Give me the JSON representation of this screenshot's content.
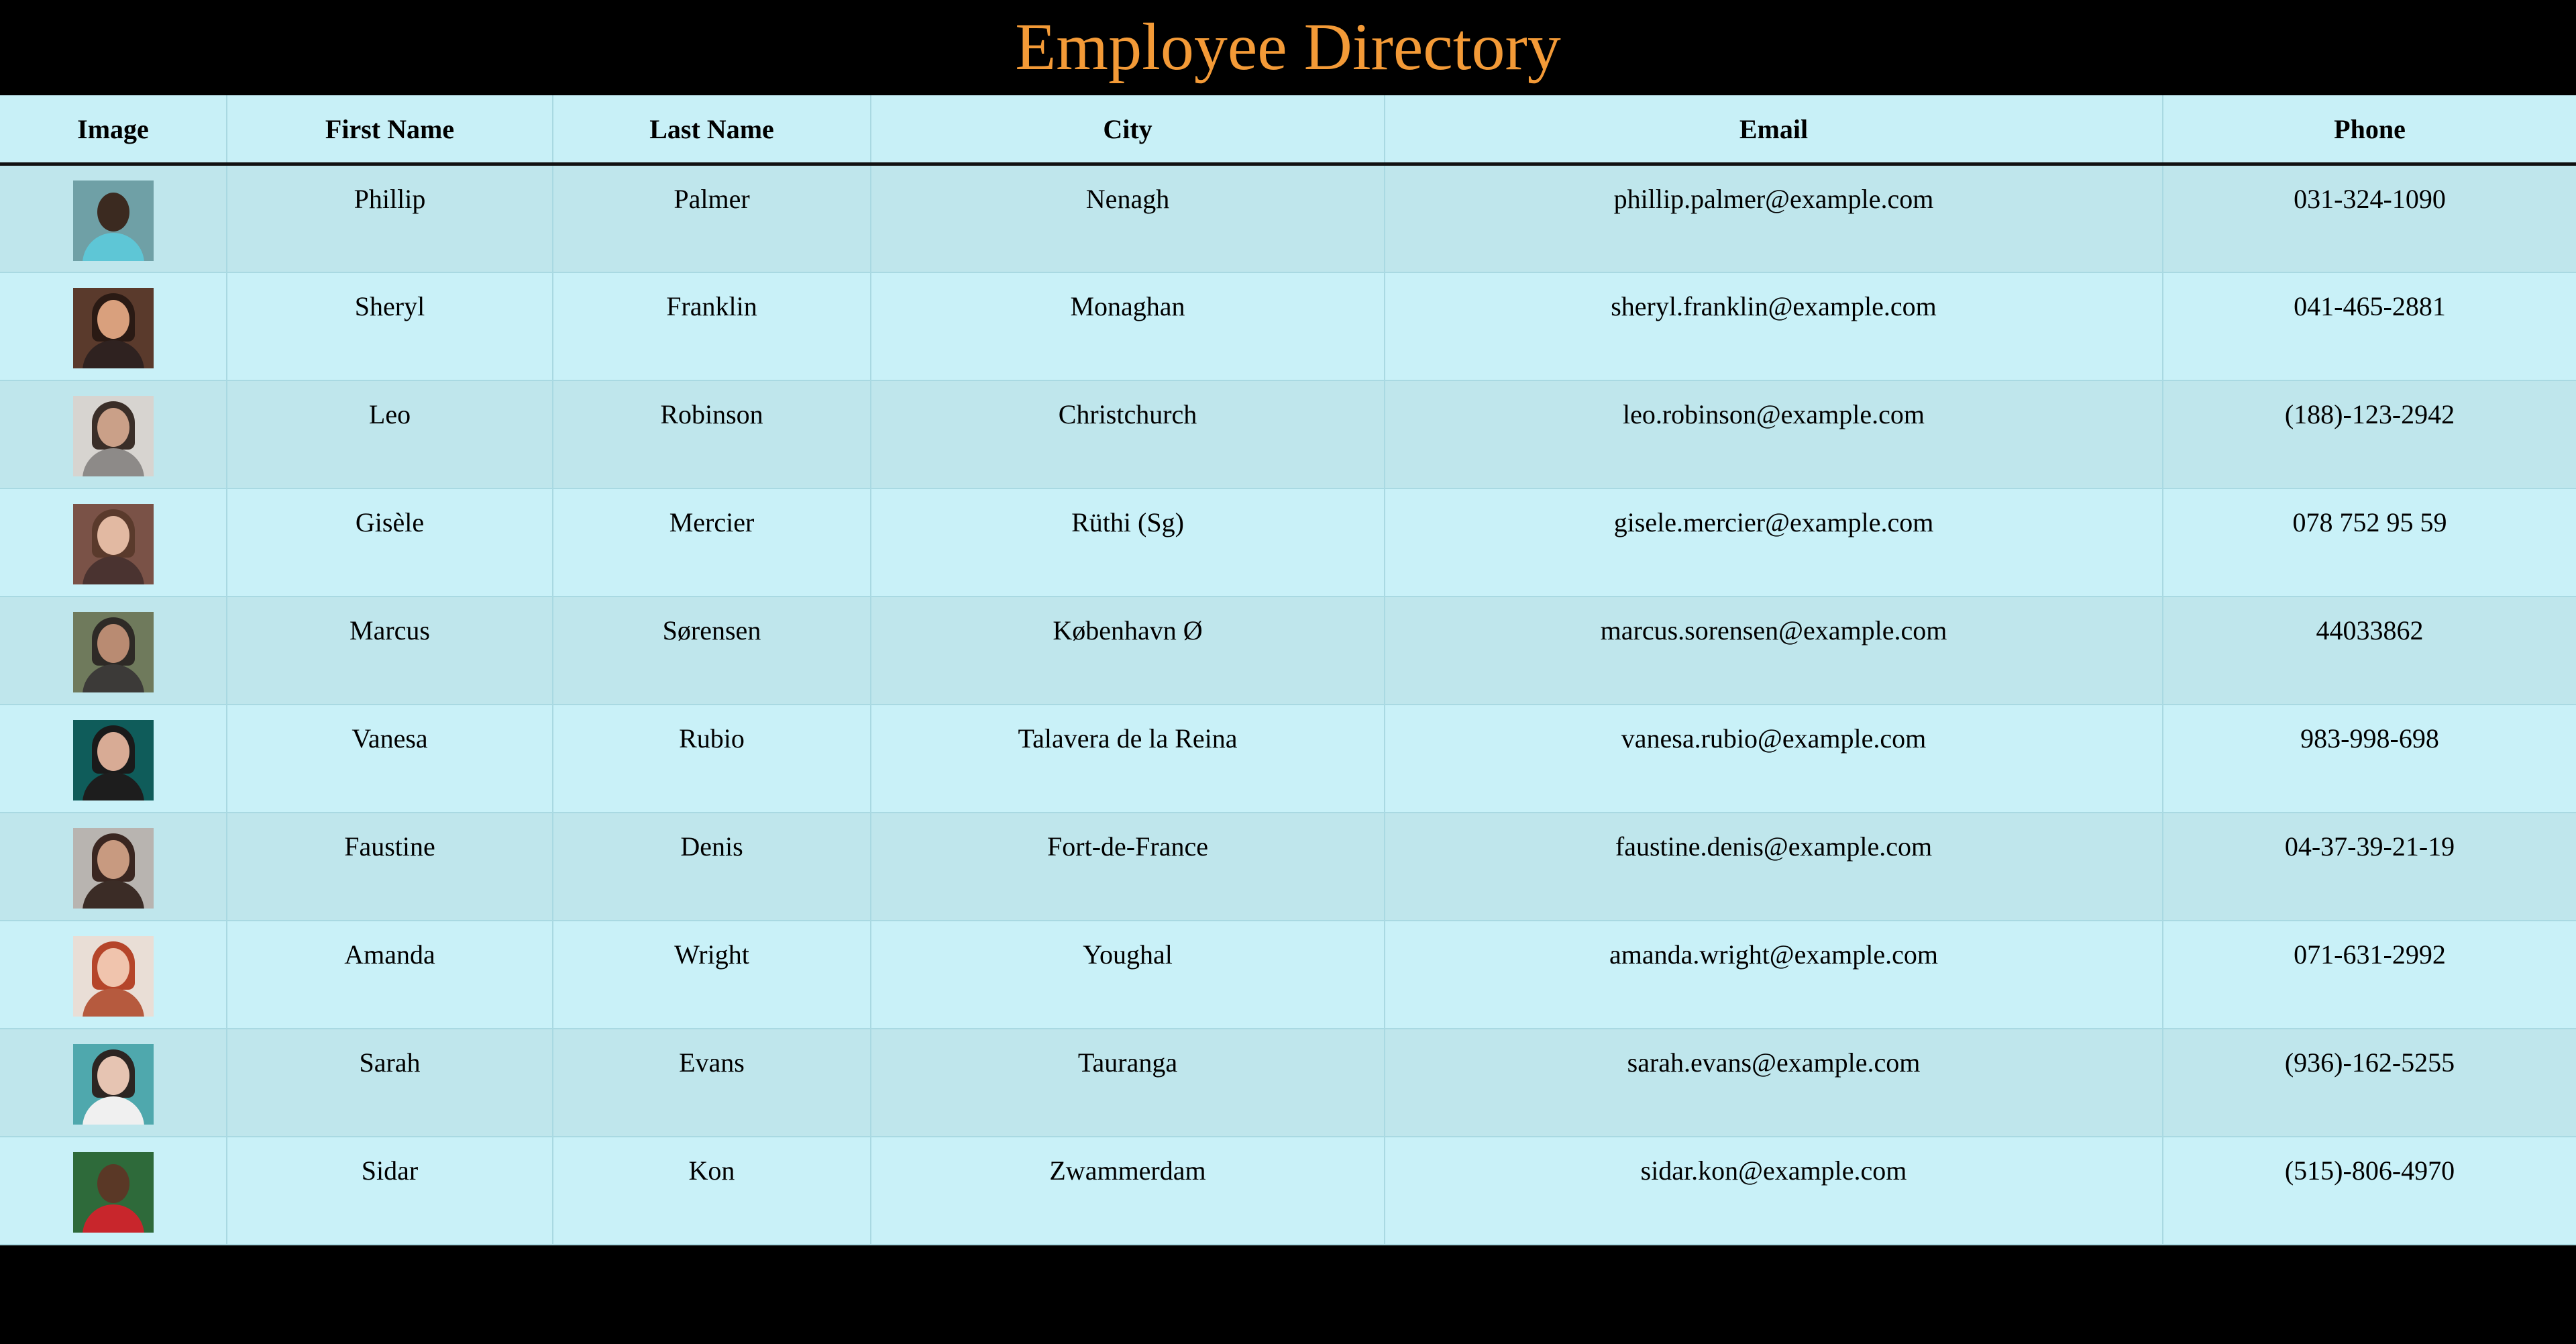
{
  "page": {
    "title": "Employee Directory",
    "title_color": "#f39a37"
  },
  "table": {
    "headers": {
      "image": "Image",
      "first_name": "First Name",
      "last_name": "Last Name",
      "city": "City",
      "email": "Email",
      "phone": "Phone"
    },
    "rows": [
      {
        "first": "Phillip",
        "last": "Palmer",
        "city": "Nenagh",
        "email": "phillip.palmer@example.com",
        "phone": "031-324-1090",
        "avatar": {
          "bg": "#6fa0a6",
          "skin": "#3b2a20",
          "shirt": "#5ec6d6",
          "hair": ""
        }
      },
      {
        "first": "Sheryl",
        "last": "Franklin",
        "city": "Monaghan",
        "email": "sheryl.franklin@example.com",
        "phone": "041-465-2881",
        "avatar": {
          "bg": "#5a3a2c",
          "skin": "#d9a07d",
          "shirt": "#2f2220",
          "hair": "#2a1a14"
        }
      },
      {
        "first": "Leo",
        "last": "Robinson",
        "city": "Christchurch",
        "email": "leo.robinson@example.com",
        "phone": "(188)-123-2942",
        "avatar": {
          "bg": "#d7d4d0",
          "skin": "#caa088",
          "shirt": "#8d8a88",
          "hair": "#3a2e28"
        }
      },
      {
        "first": "Gisèle",
        "last": "Mercier",
        "city": "Rüthi (Sg)",
        "email": "gisele.mercier@example.com",
        "phone": "078 752 95 59",
        "avatar": {
          "bg": "#7a5247",
          "skin": "#e2b9a2",
          "shirt": "#4a3330",
          "hair": "#5a3a2c"
        }
      },
      {
        "first": "Marcus",
        "last": "Sørensen",
        "city": "København Ø",
        "email": "marcus.sorensen@example.com",
        "phone": "44033862",
        "avatar": {
          "bg": "#6f7a5c",
          "skin": "#b98b72",
          "shirt": "#3c3a38",
          "hair": "#2e2a26"
        }
      },
      {
        "first": "Vanesa",
        "last": "Rubio",
        "city": "Talavera de la Reina",
        "email": "vanesa.rubio@example.com",
        "phone": "983-998-698",
        "avatar": {
          "bg": "#0f5c5a",
          "skin": "#d8ab95",
          "shirt": "#1d1d1d",
          "hair": "#1a1a1a"
        }
      },
      {
        "first": "Faustine",
        "last": "Denis",
        "city": "Fort-de-France",
        "email": "faustine.denis@example.com",
        "phone": "04-37-39-21-19",
        "avatar": {
          "bg": "#b8b4b0",
          "skin": "#c89a80",
          "shirt": "#3b2c26",
          "hair": "#3a2620"
        }
      },
      {
        "first": "Amanda",
        "last": "Wright",
        "city": "Youghal",
        "email": "amanda.wright@example.com",
        "phone": "071-631-2992",
        "avatar": {
          "bg": "#e9ded6",
          "skin": "#f0c4ad",
          "shirt": "#b65a3e",
          "hair": "#b5452a"
        }
      },
      {
        "first": "Sarah",
        "last": "Evans",
        "city": "Tauranga",
        "email": "sarah.evans@example.com",
        "phone": "(936)-162-5255",
        "avatar": {
          "bg": "#4fa8ad",
          "skin": "#e6c4b2",
          "shirt": "#f0f0f0",
          "hair": "#2c2522"
        }
      },
      {
        "first": "Sidar",
        "last": "Kon",
        "city": "Zwammerdam",
        "email": "sidar.kon@example.com",
        "phone": "(515)-806-4970",
        "avatar": {
          "bg": "#2e6a3a",
          "skin": "#5a3826",
          "shirt": "#c8262c",
          "hair": ""
        }
      }
    ]
  }
}
